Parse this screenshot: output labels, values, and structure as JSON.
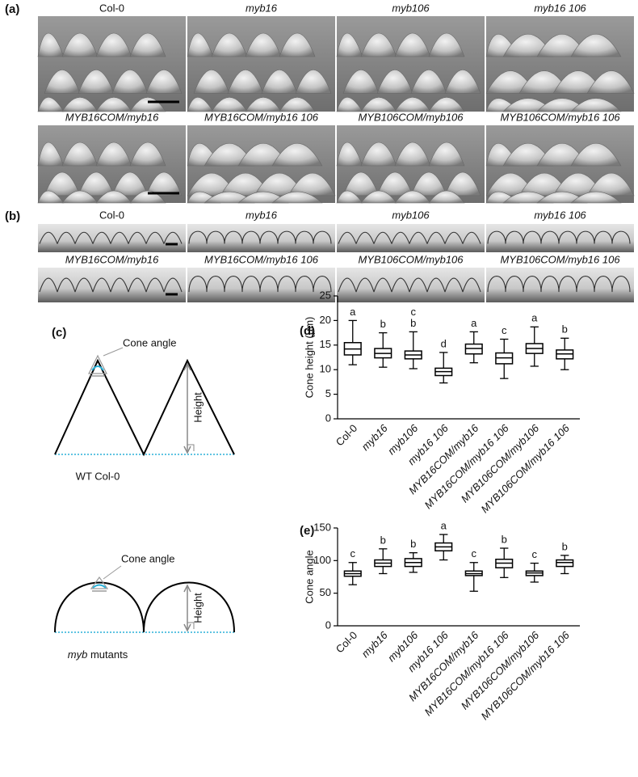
{
  "panels": {
    "a": {
      "tag": "(a)",
      "labels": [
        "Col-0",
        "myb16",
        "myb106",
        "myb16 106",
        "MYB16COM/myb16",
        "MYB16COM/myb16 106",
        "MYB106COM/myb106",
        "MYB106COM/myb16 106"
      ]
    },
    "b": {
      "tag": "(b)",
      "labels": [
        "Col-0",
        "myb16",
        "myb106",
        "myb16 106",
        "MYB16COM/myb16",
        "MYB16COM/myb16 106",
        "MYB106COM/myb106",
        "MYB106COM/myb16 106"
      ]
    },
    "c": {
      "tag": "(c)",
      "wt": {
        "angle": "Cone angle",
        "height": "Height",
        "caption": "WT Col-0"
      },
      "mutant": {
        "angle": "Cone angle",
        "height": "Height",
        "caption_italic": "myb",
        "caption": "mutants"
      }
    }
  },
  "chart_data": [
    {
      "type": "box",
      "tag": "(d)",
      "y_label": "Cone height (µm)",
      "categories": [
        "Col-0",
        "myb16",
        "myb106",
        "myb16 106",
        "MYB16COM/myb16",
        "MYB16COM/myb16 106",
        "MYB106COM/myb106",
        "MYB106COM/myb16 106"
      ],
      "label_italic": [
        false,
        true,
        true,
        true,
        true,
        true,
        true,
        true
      ],
      "boxes": [
        {
          "min": 11,
          "q1": 13,
          "median": 14.2,
          "q3": 15.5,
          "max": 20
        },
        {
          "min": 10.5,
          "q1": 12.4,
          "median": 13.3,
          "q3": 14.3,
          "max": 17.5
        },
        {
          "min": 10.2,
          "q1": 12.2,
          "median": 13,
          "q3": 13.8,
          "max": 17.7
        },
        {
          "min": 7.3,
          "q1": 8.8,
          "median": 9.6,
          "q3": 10.3,
          "max": 13.5
        },
        {
          "min": 11.4,
          "q1": 13.2,
          "median": 14.3,
          "q3": 15.2,
          "max": 17.7
        },
        {
          "min": 8.2,
          "q1": 11.2,
          "median": 12.4,
          "q3": 13.4,
          "max": 16.2
        },
        {
          "min": 10.7,
          "q1": 13.3,
          "median": 14.3,
          "q3": 15.3,
          "max": 18.7
        },
        {
          "min": 10,
          "q1": 12.2,
          "median": 13.2,
          "q3": 14,
          "max": 16.4
        }
      ],
      "letters": [
        [
          "a"
        ],
        [
          "b"
        ],
        [
          "c",
          "b"
        ],
        [
          "d"
        ],
        [
          "a"
        ],
        [
          "c"
        ],
        [
          "a"
        ],
        [
          "b"
        ]
      ],
      "ylim": [
        0,
        25
      ],
      "yticks": [
        0,
        5,
        10,
        15,
        20,
        25
      ],
      "color": "#000000"
    },
    {
      "type": "box",
      "tag": "(e)",
      "y_label": "Cone angle",
      "categories": [
        "Col-0",
        "myb16",
        "myb106",
        "myb16 106",
        "MYB16COM/myb16",
        "MYB16COM/myb16 106",
        "MYB106COM/myb106",
        "MYB106COM/myb16 106"
      ],
      "label_italic": [
        false,
        true,
        true,
        true,
        true,
        true,
        true,
        true
      ],
      "boxes": [
        {
          "min": 63,
          "q1": 76,
          "median": 80,
          "q3": 84,
          "max": 97
        },
        {
          "min": 80,
          "q1": 91,
          "median": 96,
          "q3": 101,
          "max": 118
        },
        {
          "min": 82,
          "q1": 91,
          "median": 97,
          "q3": 103,
          "max": 112
        },
        {
          "min": 101,
          "q1": 115,
          "median": 121,
          "q3": 127,
          "max": 140
        },
        {
          "min": 53,
          "q1": 77,
          "median": 80,
          "q3": 84,
          "max": 97
        },
        {
          "min": 74,
          "q1": 89,
          "median": 96,
          "q3": 102,
          "max": 119
        },
        {
          "min": 67,
          "q1": 77,
          "median": 81,
          "q3": 84,
          "max": 96
        },
        {
          "min": 80,
          "q1": 91,
          "median": 97,
          "q3": 101,
          "max": 108
        }
      ],
      "letters": [
        [
          "c"
        ],
        [
          "b"
        ],
        [
          "b"
        ],
        [
          "a"
        ],
        [
          "c"
        ],
        [
          "b"
        ],
        [
          "c"
        ],
        [
          "b"
        ]
      ],
      "ylim": [
        0,
        150
      ],
      "yticks": [
        0,
        50,
        100,
        150
      ],
      "color": "#000000"
    }
  ]
}
